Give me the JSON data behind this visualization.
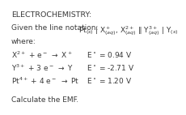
{
  "title": "ELECTROCHEMISTRY:",
  "line1_label": "Given the line notation:",
  "line1_notation": "Ptₙ₋₎ | X⁺ₙₐᵩ₎, X²⁺ₙₐᵩ₎ ‖ Y³⁺ₙₐᵩ₎ | Yₙ₋₎",
  "where": "where:",
  "eq1_left": "x²⁺ + e⁻ → X⁺",
  "eq1_right": "E° = 0.94 V",
  "eq2_left": "Y³⁺ + 3 e⁻ → Y",
  "eq2_right": "E° = -2.71 V",
  "eq3_left": "Pt⁴⁺ + 4 e⁻ → Pt",
  "eq3_right": "E° = 1.20 V",
  "footer": "Calculate the EMF.",
  "bg_color": "#ffffff",
  "text_color": "#3a3a3a",
  "font_size": 6.5,
  "title_font_size": 6.8
}
